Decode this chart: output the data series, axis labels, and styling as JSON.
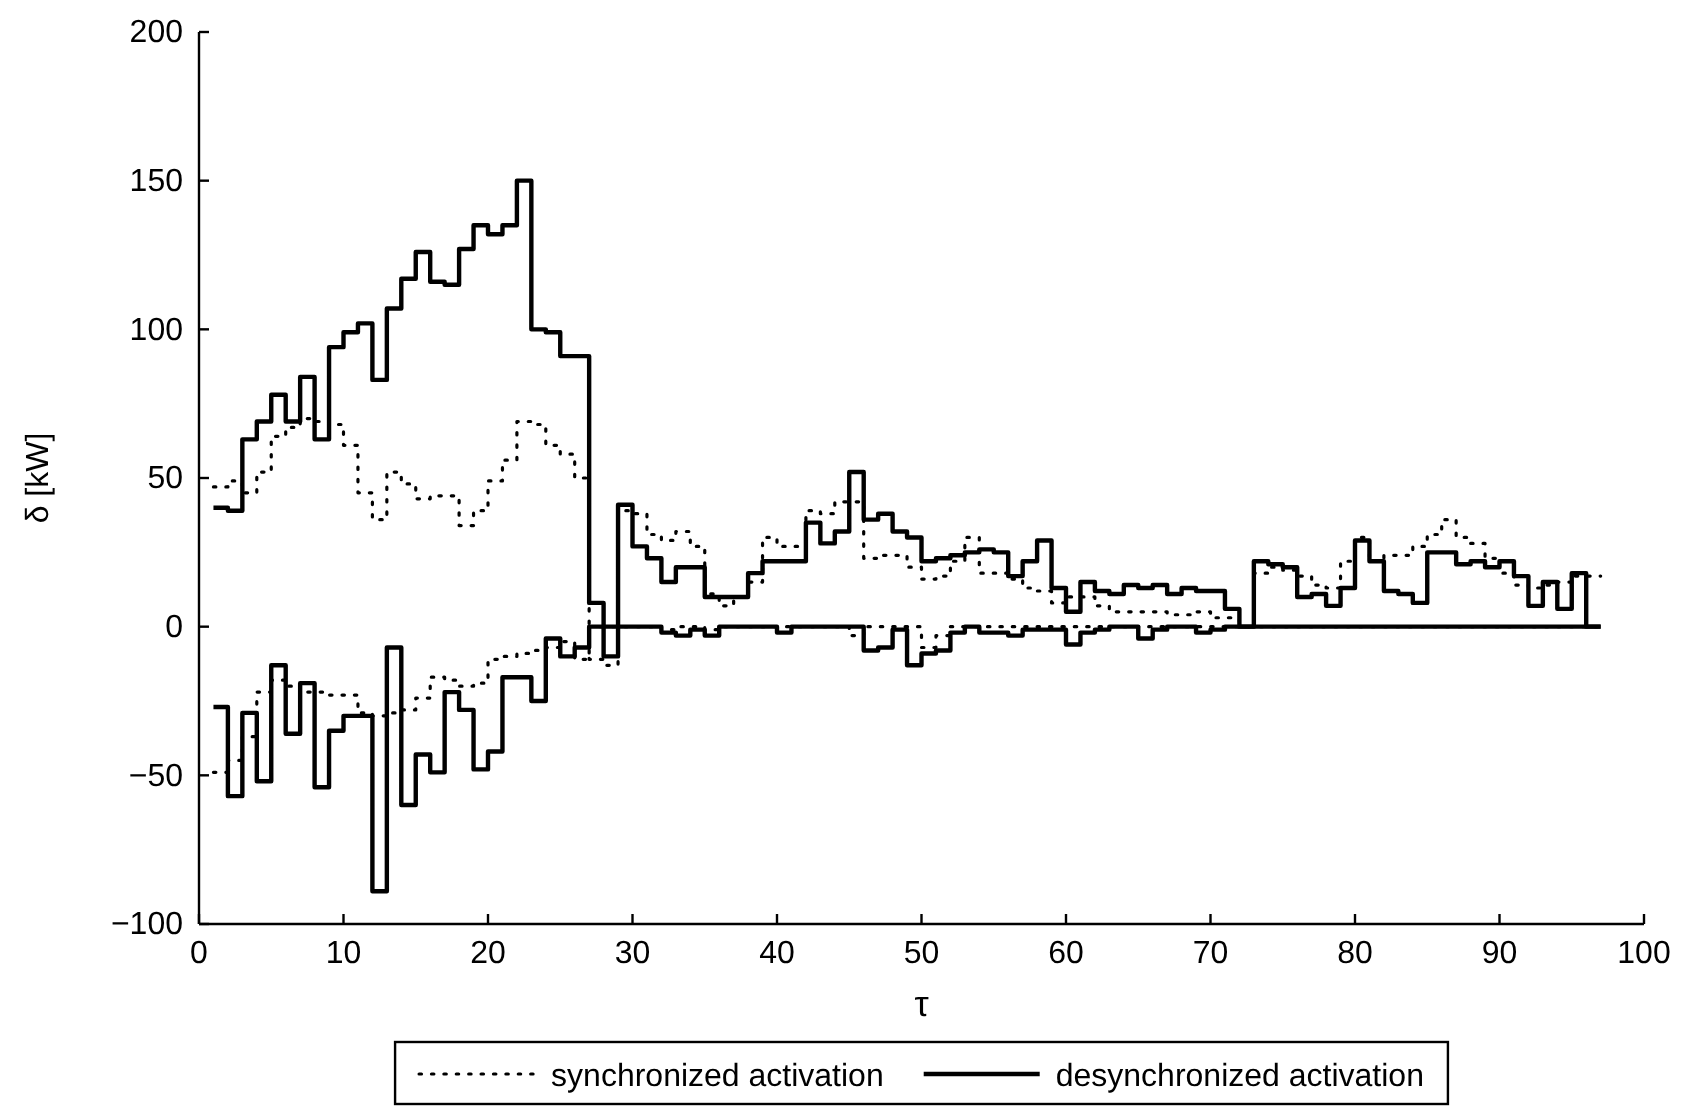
{
  "chart_data": {
    "type": "step",
    "xlabel": "τ",
    "ylabel": "δ [kW]",
    "xlim": [
      0,
      100
    ],
    "ylim": [
      -100,
      200
    ],
    "xticks": [
      0,
      10,
      20,
      30,
      40,
      50,
      60,
      70,
      80,
      90,
      100
    ],
    "yticks": [
      -100,
      -50,
      0,
      50,
      100,
      150,
      200
    ],
    "grid": false,
    "legend": "bottom",
    "marker": "none",
    "x": [
      1,
      2,
      3,
      4,
      5,
      6,
      7,
      8,
      9,
      10,
      11,
      12,
      13,
      14,
      15,
      16,
      17,
      18,
      19,
      20,
      21,
      22,
      23,
      24,
      25,
      26,
      27,
      28,
      29,
      30,
      31,
      32,
      33,
      34,
      35,
      36,
      37,
      38,
      39,
      40,
      41,
      42,
      43,
      44,
      45,
      46,
      47,
      48,
      49,
      50,
      51,
      52,
      53,
      54,
      55,
      56,
      57,
      58,
      59,
      60,
      61,
      62,
      63,
      64,
      65,
      66,
      67,
      68,
      69,
      70,
      71,
      72,
      73,
      74,
      75,
      76,
      77,
      78,
      79,
      80,
      81,
      82,
      83,
      84,
      85,
      86,
      87,
      88,
      89,
      90,
      91,
      92,
      93,
      94,
      95,
      96,
      97
    ],
    "series": [
      {
        "name": "synchronized activation",
        "color": "#000000",
        "line_style": "dotted",
        "values": [
          47,
          49,
          45,
          52,
          64,
          67,
          70,
          69,
          68,
          61,
          45,
          36,
          52,
          48,
          43,
          44,
          44,
          34,
          39,
          49,
          56,
          69,
          68,
          61,
          58,
          50,
          -11,
          -13,
          39,
          38,
          31,
          29,
          32,
          27,
          11,
          7,
          10,
          15,
          30,
          27,
          27,
          39,
          38,
          42,
          42,
          23,
          24,
          24,
          20,
          16,
          17,
          22,
          30,
          18,
          18,
          16,
          13,
          12,
          8,
          10,
          10,
          7,
          5,
          5,
          5,
          5,
          4,
          4,
          5,
          3,
          3,
          0,
          18,
          20,
          19,
          17,
          14,
          13,
          22,
          30,
          22,
          24,
          24,
          27,
          31,
          36,
          30,
          28,
          23,
          18,
          14,
          13,
          14,
          15,
          17,
          17,
          17
        ]
      },
      {
        "name": "desynchronized activation",
        "color": "#000000",
        "line_style": "solid",
        "values": [
          40,
          39,
          63,
          69,
          78,
          69,
          84,
          63,
          94,
          99,
          102,
          83,
          107,
          117,
          126,
          116,
          115,
          127,
          135,
          132,
          135,
          150,
          100,
          99,
          91,
          91,
          8,
          -10,
          41,
          27,
          23,
          15,
          20,
          20,
          10,
          10,
          10,
          18,
          22,
          22,
          22,
          35,
          28,
          32,
          52,
          36,
          38,
          32,
          30,
          22,
          23,
          24,
          25,
          26,
          25,
          17,
          22,
          29,
          13,
          5,
          15,
          12,
          11,
          14,
          13,
          14,
          11,
          13,
          12,
          12,
          6,
          0,
          22,
          21,
          20,
          10,
          11,
          7,
          13,
          29,
          22,
          12,
          11,
          8,
          25,
          25,
          21,
          22,
          20,
          22,
          17,
          7,
          15,
          6,
          18,
          0,
          0
        ]
      },
      {
        "color": "#000000",
        "line_style": "dotted",
        "values": [
          -49,
          -45,
          -37,
          -22,
          -18,
          -20,
          -22,
          -22,
          -23,
          -23,
          -29,
          -30,
          -29,
          -28,
          -24,
          -17,
          -18,
          -20,
          -19,
          -11,
          -10,
          -9,
          -8,
          -7,
          -5,
          -11,
          0,
          0,
          0,
          0,
          0,
          -1,
          0,
          0,
          -1,
          0,
          0,
          0,
          0,
          0,
          0,
          0,
          0,
          0,
          -3,
          0,
          0,
          0,
          0,
          -7,
          -3,
          0,
          0,
          0,
          0,
          0,
          0,
          0,
          0,
          0,
          0,
          0,
          0,
          0,
          0,
          0,
          0,
          0,
          0,
          0,
          0,
          0,
          0,
          0,
          0,
          0,
          0,
          0,
          0,
          0,
          0,
          0,
          0,
          0,
          0,
          0,
          0,
          0,
          0,
          0,
          0,
          0,
          0,
          0,
          0,
          0,
          0
        ]
      },
      {
        "color": "#000000",
        "line_style": "solid",
        "values": [
          -27,
          -57,
          -29,
          -52,
          -13,
          -36,
          -19,
          -54,
          -35,
          -30,
          -30,
          -89,
          -7,
          -60,
          -43,
          -49,
          -22,
          -28,
          -48,
          -42,
          -17,
          -17,
          -25,
          -4,
          -10,
          -7,
          0,
          0,
          0,
          0,
          0,
          -2,
          -3,
          -1,
          -3,
          0,
          0,
          0,
          0,
          -2,
          0,
          0,
          0,
          0,
          0,
          -8,
          -7,
          -1,
          -13,
          -9,
          -8,
          -2,
          0,
          -2,
          -2,
          -3,
          -1,
          -1,
          -1,
          -6,
          -2,
          -1,
          0,
          0,
          -4,
          -1,
          0,
          0,
          -2,
          -1,
          0,
          0,
          0,
          0,
          0,
          0,
          0,
          0,
          0,
          0,
          0,
          0,
          0,
          0,
          0,
          0,
          0,
          0,
          0,
          0,
          0,
          0,
          0,
          0,
          0,
          0,
          0
        ]
      }
    ]
  }
}
